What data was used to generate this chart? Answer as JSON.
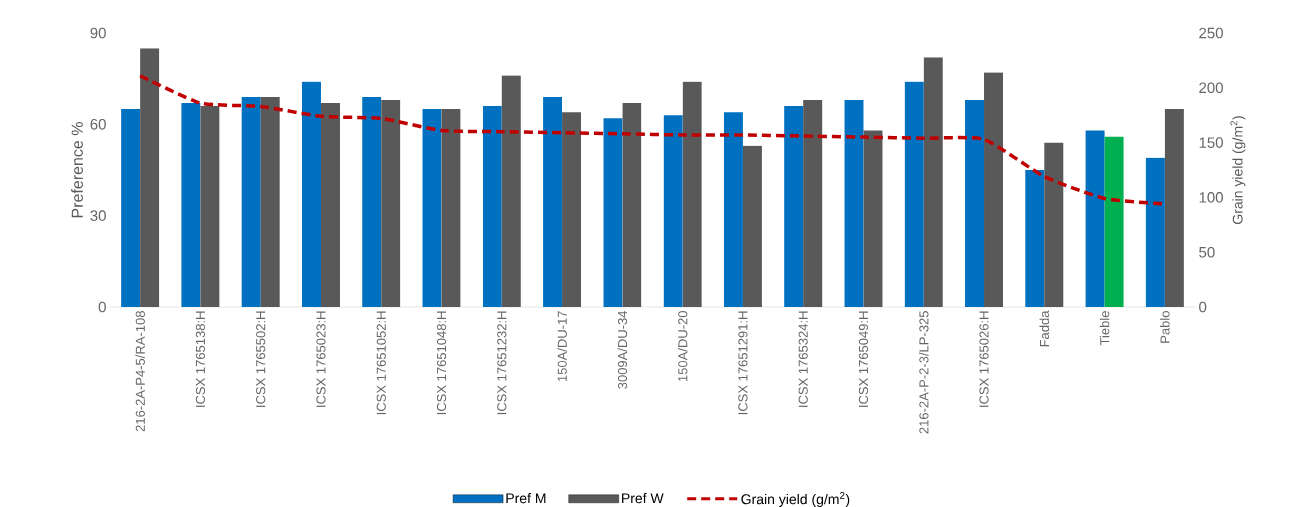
{
  "chart_data": {
    "type": "bar",
    "ylabel": "Preference %",
    "y2label": "Grain yield (g/m$^{2}$)",
    "categories": [
      "216-2A-P4-5/RA-108",
      "ICSX 1765138:H",
      "ICSX 1765502:H",
      "ICSX 1765023:H",
      "ICSX 17651052:H",
      "ICSX 17651048:H",
      "ICSX 17651232:H",
      "150A/DU-17",
      "3009A/DU-34",
      "150A/DU-20",
      "ICSX 17651291:H",
      "ICSX 1765324:H",
      "ICSX 1765049:H",
      "216-2A-P-2-3/LP-325",
      "ICSX 1765026:H",
      "Fadda",
      "Tieble",
      "Pablo"
    ],
    "series": [
      {
        "name": "Pref M",
        "color": "#0070c0",
        "values": [
          65,
          67,
          69,
          74,
          69,
          65,
          66,
          69,
          62,
          63,
          64,
          66,
          68,
          74,
          68,
          45,
          58,
          49
        ]
      },
      {
        "name": "Pref W",
        "color": "#595959",
        "colors": [
          "#595959",
          "#595959",
          "#595959",
          "#595959",
          "#595959",
          "#595959",
          "#595959",
          "#595959",
          "#595959",
          "#595959",
          "#595959",
          "#595959",
          "#595959",
          "#595959",
          "#595959",
          "#595959",
          "#00b050",
          "#595959"
        ],
        "values": [
          85,
          66,
          69,
          67,
          68,
          65,
          76,
          64,
          67,
          74,
          53,
          68,
          58,
          82,
          77,
          54,
          56,
          65
        ]
      },
      {
        "name": "Grain yield (g/m$^{2}$)",
        "type": "line",
        "axis": "y2",
        "color": "#c00000",
        "line_style": "dashed",
        "marker": "none",
        "values": [
          211,
          186,
          183,
          174,
          172,
          161,
          160,
          159,
          158,
          157,
          157,
          156,
          155,
          154,
          153,
          119,
          99,
          94
        ]
      }
    ],
    "ylim": [
      0,
      90
    ],
    "yticks": [
      0,
      30,
      60,
      90
    ],
    "y2lim": [
      0,
      250
    ],
    "y2ticks": [
      0,
      50,
      100,
      150,
      200,
      250
    ],
    "legend": "bottom"
  }
}
